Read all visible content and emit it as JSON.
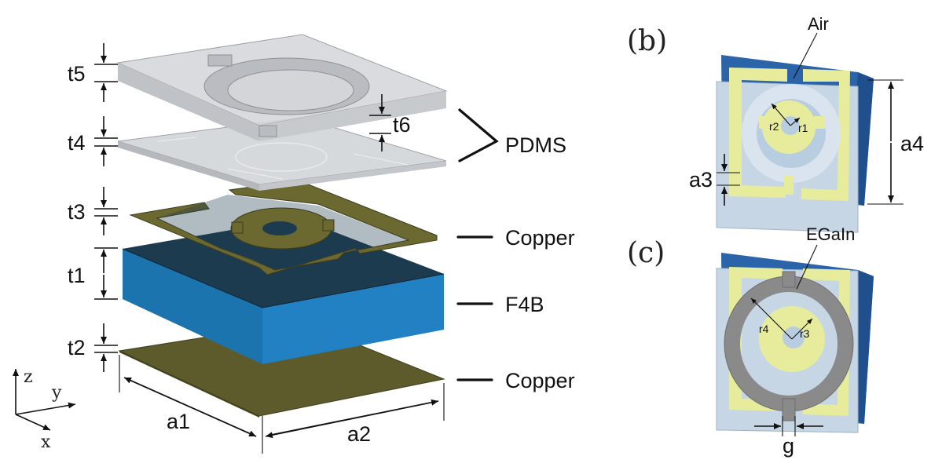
{
  "figure": {
    "dimension_labels": {
      "t5": "t5",
      "t4": "t4",
      "t3": "t3",
      "t1": "t1",
      "t2": "t2",
      "t6": "t6",
      "a1": "a1",
      "a2": "a2",
      "a3": "a3",
      "a4": "a4",
      "r1": "r1",
      "r2": "r2",
      "r3": "r3",
      "r4": "r4",
      "g": "g"
    },
    "layer_labels": {
      "pdms": "PDMS",
      "copper_top": "Copper",
      "f4b": "F4B",
      "copper_bottom": "Copper"
    },
    "axes": {
      "z": "z",
      "y": "y",
      "x": "x"
    },
    "panel_b": {
      "label": "(b)",
      "callout": "Air"
    },
    "panel_c": {
      "label": "(c)",
      "callout": "EGaIn"
    },
    "colors": {
      "copper": "#5d5b2c",
      "f4b_top": "#1d3b4f",
      "f4b_front": "#1f7fbf",
      "f4b_left": "#1a6fa6",
      "pdms": "#c9ccd0",
      "panel_substrate": "#2b64a8",
      "panel_patch": "#e6ec9c",
      "panel_face": "#b9cde0",
      "egain": "#8a8a8a"
    }
  }
}
